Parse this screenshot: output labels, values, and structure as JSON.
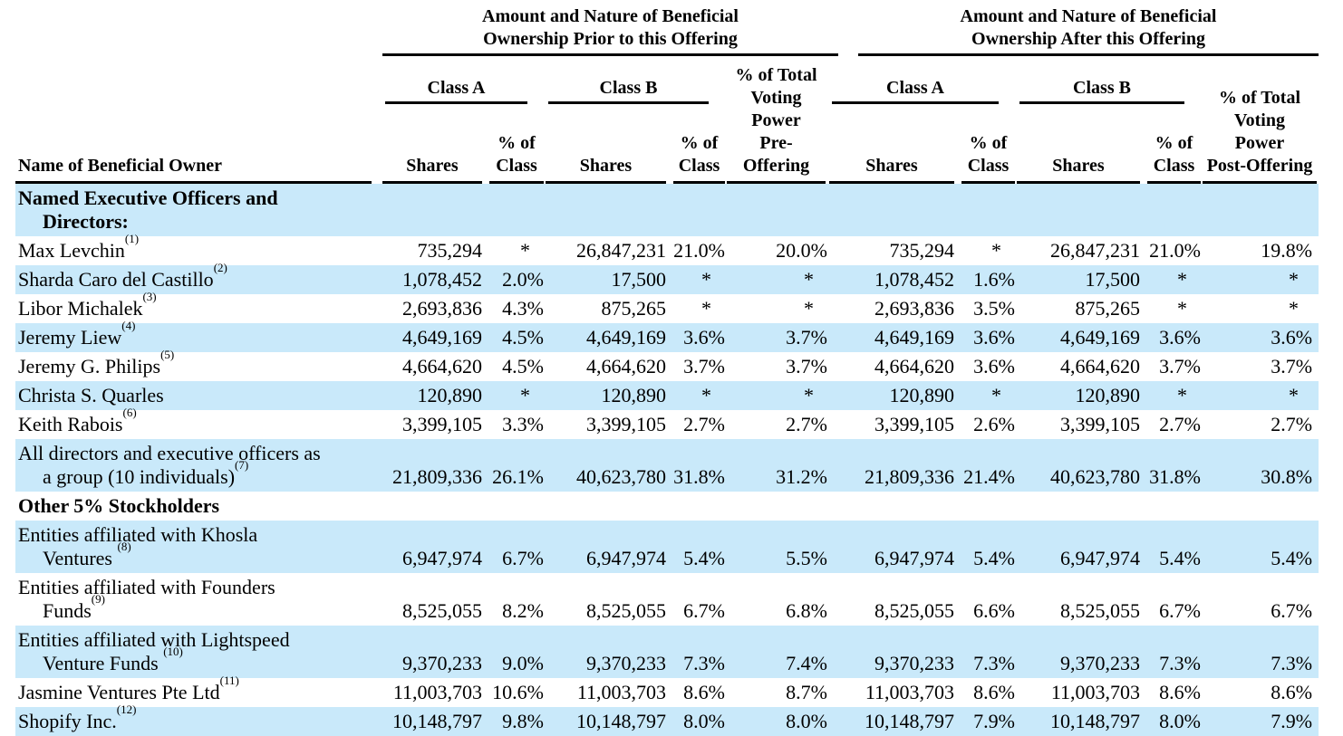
{
  "colors": {
    "stripe": "#c9e9fa",
    "text": "#000000",
    "rule": "#000000"
  },
  "header": {
    "name_col": "Name of Beneficial Owner",
    "groups": [
      {
        "title_lines": [
          "Amount and Nature of Beneficial",
          "Ownership Prior to this Offering"
        ]
      },
      {
        "title_lines": [
          "Amount and Nature of Beneficial",
          "Ownership After this Offering"
        ]
      }
    ],
    "class_a": "Class A",
    "class_b": "Class B",
    "col_shares": "Shares",
    "col_pct_lines": [
      "% of",
      "Class"
    ],
    "pre_voting_lines": [
      "% of Total",
      "Voting",
      "Power",
      "Pre-Offering"
    ],
    "post_voting_lines": [
      "% of Total",
      "Voting",
      "Power",
      "Post-Offering"
    ]
  },
  "rows": [
    {
      "type": "section",
      "shaded": true,
      "lines": [
        {
          "t": "Named Executive Officers and"
        },
        {
          "t": "Directors:"
        }
      ]
    },
    {
      "type": "data",
      "shaded": false,
      "lines": [
        {
          "t": "Max Levchin",
          "sup": "(1)"
        }
      ],
      "values": [
        "735,294",
        "*",
        "26,847,231",
        "21.0%",
        "20.0%",
        "735,294",
        "*",
        "26,847,231",
        "21.0%",
        "19.8%"
      ]
    },
    {
      "type": "data",
      "shaded": true,
      "lines": [
        {
          "t": "Sharda Caro del Castillo",
          "sup": "(2)"
        }
      ],
      "values": [
        "1,078,452",
        "2.0%",
        "17,500",
        "*",
        "*",
        "1,078,452",
        "1.6%",
        "17,500",
        "*",
        "*"
      ]
    },
    {
      "type": "data",
      "shaded": false,
      "lines": [
        {
          "t": "Libor Michalek",
          "sup": "(3)"
        }
      ],
      "values": [
        "2,693,836",
        "4.3%",
        "875,265",
        "*",
        "*",
        "2,693,836",
        "3.5%",
        "875,265",
        "*",
        "*"
      ]
    },
    {
      "type": "data",
      "shaded": true,
      "lines": [
        {
          "t": "Jeremy Liew",
          "sup": "(4)"
        }
      ],
      "values": [
        "4,649,169",
        "4.5%",
        "4,649,169",
        "3.6%",
        "3.7%",
        "4,649,169",
        "3.6%",
        "4,649,169",
        "3.6%",
        "3.6%"
      ]
    },
    {
      "type": "data",
      "shaded": false,
      "lines": [
        {
          "t": "Jeremy G. Philips",
          "sup": "(5)"
        }
      ],
      "values": [
        "4,664,620",
        "4.5%",
        "4,664,620",
        "3.7%",
        "3.7%",
        "4,664,620",
        "3.6%",
        "4,664,620",
        "3.7%",
        "3.7%"
      ]
    },
    {
      "type": "data",
      "shaded": true,
      "lines": [
        {
          "t": "Christa S. Quarles"
        }
      ],
      "values": [
        "120,890",
        "*",
        "120,890",
        "*",
        "*",
        "120,890",
        "*",
        "120,890",
        "*",
        "*"
      ]
    },
    {
      "type": "data",
      "shaded": false,
      "lines": [
        {
          "t": "Keith Rabois",
          "sup": "(6)"
        }
      ],
      "values": [
        "3,399,105",
        "3.3%",
        "3,399,105",
        "2.7%",
        "2.7%",
        "3,399,105",
        "2.6%",
        "3,399,105",
        "2.7%",
        "2.7%"
      ]
    },
    {
      "type": "data",
      "shaded": true,
      "lines": [
        {
          "t": "All directors and executive officers as"
        },
        {
          "t": "a group (10 individuals)",
          "sup": "(7)"
        }
      ],
      "values": [
        "21,809,336",
        "26.1%",
        "40,623,780",
        "31.8%",
        "31.2%",
        "21,809,336",
        "21.4%",
        "40,623,780",
        "31.8%",
        "30.8%"
      ]
    },
    {
      "type": "section",
      "shaded": false,
      "lines": [
        {
          "t": "Other 5% Stockholders"
        }
      ]
    },
    {
      "type": "data",
      "shaded": true,
      "lines": [
        {
          "t": "Entities affiliated with Khosla"
        },
        {
          "t": "Ventures ",
          "sup": "(8)"
        }
      ],
      "values": [
        "6,947,974",
        "6.7%",
        "6,947,974",
        "5.4%",
        "5.5%",
        "6,947,974",
        "5.4%",
        "6,947,974",
        "5.4%",
        "5.4%"
      ]
    },
    {
      "type": "data",
      "shaded": false,
      "lines": [
        {
          "t": "Entities affiliated with Founders"
        },
        {
          "t": "Funds",
          "sup": "(9)"
        }
      ],
      "values": [
        "8,525,055",
        "8.2%",
        "8,525,055",
        "6.7%",
        "6.8%",
        "8,525,055",
        "6.6%",
        "8,525,055",
        "6.7%",
        "6.7%"
      ]
    },
    {
      "type": "data",
      "shaded": true,
      "lines": [
        {
          "t": "Entities affiliated with Lightspeed"
        },
        {
          "t": "Venture Funds ",
          "sup": "(10)"
        }
      ],
      "values": [
        "9,370,233",
        "9.0%",
        "9,370,233",
        "7.3%",
        "7.4%",
        "9,370,233",
        "7.3%",
        "9,370,233",
        "7.3%",
        "7.3%"
      ]
    },
    {
      "type": "data",
      "shaded": false,
      "lines": [
        {
          "t": "Jasmine Ventures Pte Ltd",
          "sup": "(11)"
        }
      ],
      "values": [
        "11,003,703",
        "10.6%",
        "11,003,703",
        "8.6%",
        "8.7%",
        "11,003,703",
        "8.6%",
        "11,003,703",
        "8.6%",
        "8.6%"
      ]
    },
    {
      "type": "data",
      "shaded": true,
      "lines": [
        {
          "t": "Shopify Inc.",
          "sup": "(12)"
        }
      ],
      "values": [
        "10,148,797",
        "9.8%",
        "10,148,797",
        "8.0%",
        "8.0%",
        "10,148,797",
        "7.9%",
        "10,148,797",
        "8.0%",
        "7.9%"
      ]
    }
  ]
}
